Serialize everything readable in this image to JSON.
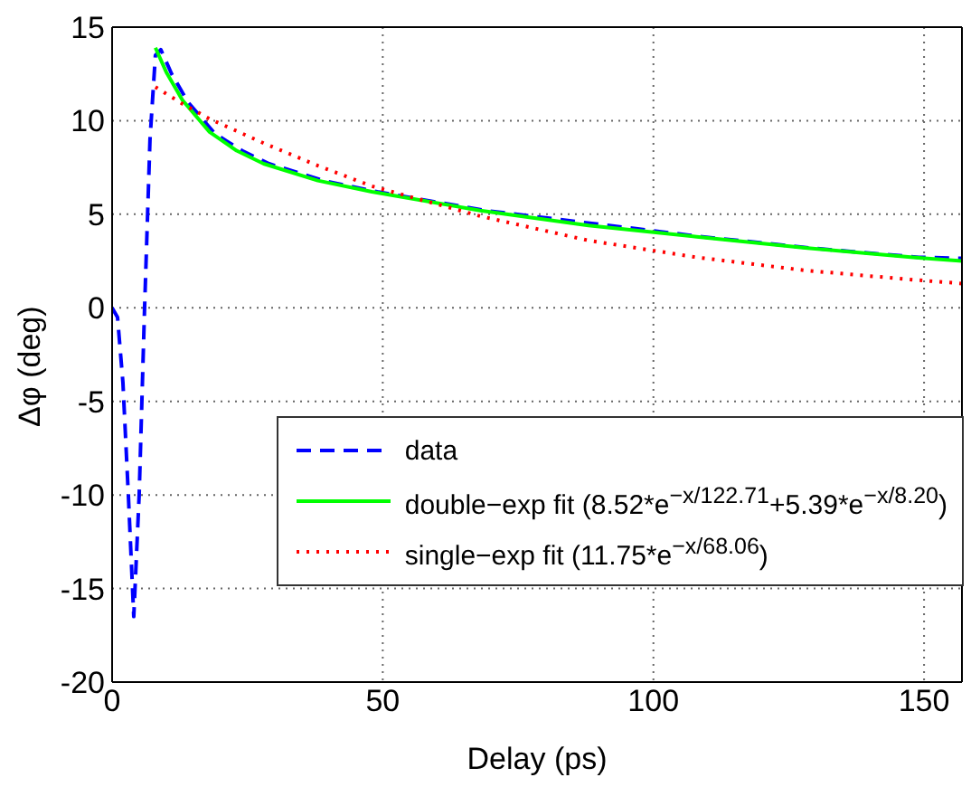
{
  "chart_data": {
    "type": "line",
    "xlabel": "Delay (ps)",
    "ylabel": "Δφ (deg)",
    "xlim": [
      0,
      157
    ],
    "xticks": [
      0,
      50,
      100,
      150
    ],
    "ylim": [
      -20,
      15
    ],
    "yticks": [
      -20,
      -15,
      -10,
      -5,
      0,
      5,
      10,
      15
    ],
    "grid": true,
    "legend": "bottom right",
    "marker": "none",
    "series": [
      {
        "name": "data",
        "color": "#0000ff",
        "line_style": "dashed",
        "x": [
          0,
          1,
          2,
          3,
          4,
          5,
          6,
          7,
          8,
          9,
          11,
          14,
          19,
          24,
          29,
          39,
          49,
          69,
          89,
          109,
          129,
          149,
          157
        ],
        "values": [
          0,
          -0.5,
          -4,
          -10,
          -16.5,
          -10,
          0,
          9,
          13.5,
          13.8,
          12.5,
          11,
          9.3,
          8.4,
          7.7,
          6.8,
          6.2,
          5.2,
          4.5,
          3.8,
          3.2,
          2.7,
          2.65
        ]
      },
      {
        "name": "double−exp fit (8.52*e$^{−x/122.71}$+5.39*e$^{−x/8.20}$)",
        "color": "#00ff00",
        "line_style": "solid",
        "x": [
          8,
          10,
          13,
          18,
          23,
          28,
          38,
          48,
          68,
          88,
          108,
          128,
          148,
          157
        ],
        "values": [
          13.9,
          12.6,
          11.1,
          9.4,
          8.4,
          7.7,
          6.8,
          6.2,
          5.2,
          4.4,
          3.8,
          3.2,
          2.7,
          2.5
        ]
      },
      {
        "name": "single−exp fit (11.75*e$^{−x/68.06}$)",
        "color": "#ff0000",
        "line_style": "dotted",
        "x": [
          8,
          13,
          18,
          28,
          38,
          48,
          68,
          88,
          108,
          128,
          148,
          157
        ],
        "values": [
          11.8,
          10.9,
          10.1,
          8.8,
          7.6,
          6.5,
          4.9,
          3.6,
          2.7,
          2.0,
          1.5,
          1.3
        ]
      }
    ]
  }
}
